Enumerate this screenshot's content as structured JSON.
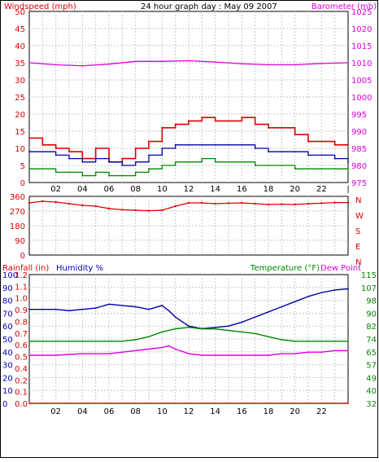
{
  "colors": {
    "wind": "#dd0000",
    "gust_bar": "#dd0000",
    "wind_avg": "#0000aa",
    "wind_green": "#008800",
    "barometer": "#dd00dd",
    "direction": "#dd0000",
    "humidity": "#0000aa",
    "temperature": "#008800",
    "dew_point": "#dd00dd",
    "rainfall": "#dd0000",
    "grid": "#c8c8c8",
    "frame_bg": "#ffffff"
  },
  "chart_data": [
    {
      "type": "line",
      "title": "24 hour graph day : May 09 2007",
      "ylabel_left": "Windspeed (mph)",
      "ylabel_right": "Barometer (mb)",
      "x_ticks": [
        "02",
        "04",
        "06",
        "08",
        "10",
        "12",
        "14",
        "16",
        "18",
        "20",
        "22",
        "|"
      ],
      "x_range": [
        0,
        24
      ],
      "ylim_left": [
        0,
        50
      ],
      "yticks_left": [
        "0",
        "5",
        "10",
        "15",
        "20",
        "25",
        "30",
        "35",
        "40",
        "45",
        "50"
      ],
      "ylim_right": [
        975,
        1025
      ],
      "yticks_right": [
        "975",
        "980",
        "985",
        "990",
        "995",
        "1000",
        "1005",
        "1010",
        "1015",
        "1020",
        "1025"
      ],
      "grid": true,
      "series": [
        {
          "key": "gust",
          "kind": "step",
          "axis": "left",
          "x": [
            0,
            1,
            2,
            3,
            4,
            5,
            6,
            7,
            8,
            9,
            10,
            11,
            12,
            13,
            14,
            15,
            16,
            17,
            18,
            19,
            20,
            21,
            22,
            23,
            24
          ],
          "values": [
            13,
            11,
            10,
            9,
            7,
            10,
            6,
            7,
            10,
            12,
            16,
            17,
            18,
            19,
            18,
            18,
            19,
            17,
            16,
            16,
            14,
            12,
            12,
            11,
            11
          ]
        },
        {
          "key": "wind_avg",
          "kind": "step",
          "axis": "left",
          "x": [
            0,
            1,
            2,
            3,
            4,
            5,
            6,
            7,
            8,
            9,
            10,
            11,
            12,
            13,
            14,
            15,
            16,
            17,
            18,
            19,
            20,
            21,
            22,
            23,
            24
          ],
          "values": [
            9,
            9,
            8,
            7,
            6,
            7,
            6,
            5,
            6,
            8,
            10,
            11,
            11,
            11,
            11,
            11,
            11,
            10,
            9,
            9,
            9,
            8,
            8,
            7,
            6
          ]
        },
        {
          "key": "wind_low",
          "kind": "step",
          "axis": "left",
          "x": [
            0,
            1,
            2,
            3,
            4,
            5,
            6,
            7,
            8,
            9,
            10,
            11,
            12,
            13,
            14,
            15,
            16,
            17,
            18,
            19,
            20,
            21,
            22,
            23,
            24
          ],
          "values": [
            4,
            4,
            3,
            3,
            2,
            3,
            2,
            2,
            3,
            4,
            5,
            6,
            6,
            7,
            6,
            6,
            6,
            5,
            5,
            5,
            4,
            4,
            4,
            4,
            3
          ]
        },
        {
          "key": "barometer",
          "kind": "line",
          "axis": "right",
          "x": [
            0,
            2,
            4,
            6,
            8,
            10,
            12,
            14,
            16,
            18,
            20,
            22,
            24
          ],
          "values": [
            1010,
            1009.4,
            1009.1,
            1009.6,
            1010.4,
            1010.4,
            1010.6,
            1010.2,
            1009.7,
            1009.4,
            1009.4,
            1009.8,
            1010
          ]
        }
      ]
    },
    {
      "type": "scatter",
      "ylabel_right": [
        "N",
        "W",
        "S",
        "E",
        "N"
      ],
      "ylim_left": [
        0,
        360
      ],
      "yticks_left": [
        "0",
        "90",
        "180",
        "270",
        "360"
      ],
      "x_range": [
        0,
        24
      ],
      "grid": true,
      "series": [
        {
          "key": "direction",
          "x": [
            0,
            1,
            2,
            3,
            4,
            5,
            6,
            7,
            8,
            9,
            10,
            11,
            12,
            13,
            14,
            15,
            16,
            17,
            18,
            19,
            20,
            21,
            22,
            23,
            24
          ],
          "values": [
            320,
            330,
            325,
            315,
            305,
            300,
            285,
            278,
            275,
            272,
            275,
            300,
            320,
            320,
            315,
            318,
            320,
            315,
            310,
            312,
            310,
            315,
            318,
            322,
            322
          ]
        }
      ]
    },
    {
      "type": "line",
      "ylabel_left_1": "Rainfall (in)",
      "ylabel_left_2": "Humidity %",
      "ylabel_right_1": "Temperature (°F)",
      "ylabel_right_2": "Dew Point",
      "x_ticks": [
        "02",
        "04",
        "06",
        "08",
        "10",
        "12",
        "14",
        "16",
        "18",
        "20",
        "22"
      ],
      "x_range": [
        0,
        24
      ],
      "ylim_humidity": [
        0,
        100
      ],
      "yticks_humidity": [
        "0",
        "10",
        "20",
        "30",
        "40",
        "50",
        "60",
        "70",
        "80",
        "90",
        "100"
      ],
      "ylim_rain": [
        0,
        1.2
      ],
      "yticks_rain": [
        "0.0",
        "0.1",
        "0.2",
        "0.4",
        "0.5",
        "0.6",
        "0.7",
        "0.8",
        "0.9",
        "1.0",
        "1.1",
        "1.2"
      ],
      "ylim_temp": [
        32,
        115
      ],
      "yticks_temp": [
        "32",
        "40",
        "49",
        "57",
        "65",
        "74",
        "82",
        "90",
        "98",
        "107",
        "115"
      ],
      "grid": true,
      "series": [
        {
          "key": "humidity",
          "axis": "humidity",
          "x": [
            0,
            1,
            2,
            3,
            4,
            5,
            6,
            7,
            8,
            9,
            10,
            10.5,
            11,
            12,
            13,
            14,
            15,
            16,
            17,
            18,
            19,
            20,
            21,
            22,
            23,
            24
          ],
          "values": [
            73,
            73,
            73,
            72,
            73,
            74,
            77,
            76,
            75,
            73,
            76,
            72,
            67,
            60,
            58,
            59,
            60,
            63,
            67,
            71,
            75,
            79,
            83,
            86,
            88,
            89
          ]
        },
        {
          "key": "temperature",
          "axis": "temp",
          "x": [
            0,
            2,
            4,
            6,
            7,
            8,
            9,
            10,
            11,
            12,
            13,
            14,
            15,
            16,
            17,
            18,
            19,
            20,
            21,
            22,
            23,
            24
          ],
          "values": [
            72,
            72,
            72,
            72,
            72,
            73,
            75,
            78,
            80,
            81,
            80,
            80,
            79,
            78,
            77,
            75,
            73,
            72,
            72,
            72,
            72,
            72
          ]
        },
        {
          "key": "dew_point",
          "axis": "temp",
          "x": [
            0,
            2,
            4,
            6,
            7,
            8,
            9,
            10,
            10.5,
            11,
            12,
            13,
            14,
            15,
            16,
            17,
            18,
            19,
            20,
            21,
            22,
            23,
            24
          ],
          "values": [
            63,
            63,
            64,
            64,
            65,
            66,
            67,
            68,
            69,
            67,
            64,
            63,
            63,
            63,
            63,
            63,
            63,
            64,
            64,
            65,
            65,
            66,
            66
          ]
        },
        {
          "key": "rainfall",
          "axis": "rain",
          "x": [
            0,
            24
          ],
          "values": [
            0,
            0
          ]
        }
      ]
    }
  ]
}
